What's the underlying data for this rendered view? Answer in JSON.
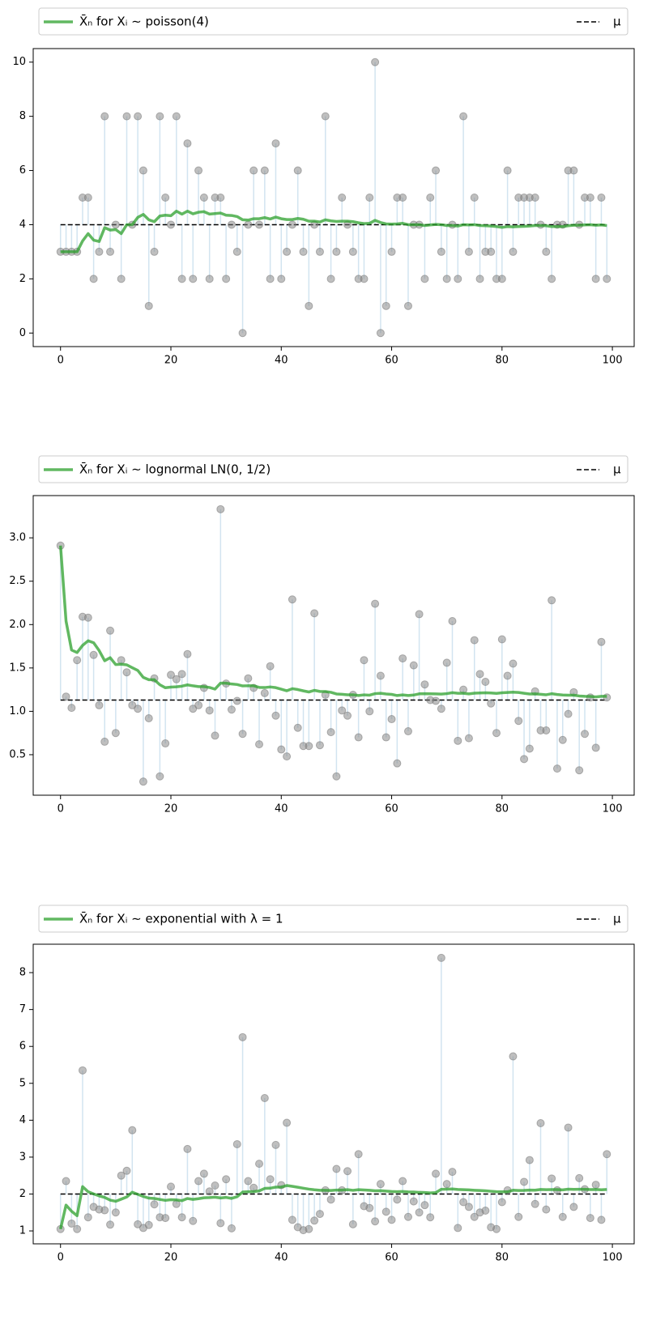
{
  "chart_data": [
    {
      "type": "line",
      "legend": "top",
      "mean": {
        "name": "X̄ₙ for Xᵢ ∼ poisson(4)",
        "color": "#2ca02c",
        "values": [
          3,
          3,
          3,
          3,
          3.4,
          3.67,
          3.43,
          3.38,
          3.89,
          3.8,
          3.82,
          3.67,
          4.0,
          4.0,
          4.27,
          4.38,
          4.18,
          4.11,
          4.32,
          4.35,
          4.33,
          4.5,
          4.39,
          4.5,
          4.4,
          4.46,
          4.48,
          4.39,
          4.41,
          4.43,
          4.35,
          4.34,
          4.3,
          4.18,
          4.17,
          4.22,
          4.22,
          4.26,
          4.21,
          4.28,
          4.22,
          4.19,
          4.19,
          4.23,
          4.2,
          4.13,
          4.13,
          4.1,
          4.18,
          4.14,
          4.12,
          4.13,
          4.13,
          4.11,
          4.07,
          4.04,
          4.05,
          4.16,
          4.08,
          4.03,
          4.02,
          4.03,
          4.05,
          4.0,
          4.0,
          4.0,
          3.97,
          3.99,
          4.01,
          4.0,
          3.97,
          3.97,
          3.95,
          4.0,
          3.99,
          4.0,
          3.97,
          3.96,
          3.95,
          3.93,
          3.9,
          3.93,
          3.92,
          3.93,
          3.94,
          3.95,
          3.97,
          3.97,
          3.96,
          3.93,
          3.93,
          3.93,
          3.96,
          3.98,
          3.98,
          3.99,
          4.0,
          3.98,
          3.99,
          3.97
        ]
      },
      "reference": {
        "name": "μ",
        "color": "#000000",
        "value": 4
      },
      "samples": {
        "color": "#808080",
        "stem_color": "#1f77b4",
        "values": [
          3,
          3,
          3,
          3,
          5,
          5,
          2,
          3,
          8,
          3,
          4,
          2,
          8,
          4,
          8,
          6,
          1,
          3,
          8,
          5,
          4,
          8,
          2,
          7,
          2,
          6,
          5,
          2,
          5,
          5,
          2,
          4,
          3,
          0,
          4,
          6,
          4,
          6,
          2,
          7,
          2,
          3,
          4,
          6,
          3,
          1,
          4,
          3,
          8,
          2,
          3,
          5,
          4,
          3,
          2,
          2,
          5,
          10,
          0,
          1,
          3,
          5,
          5,
          1,
          4,
          4,
          2,
          5,
          6,
          3,
          2,
          4,
          2,
          8,
          3,
          5,
          2,
          3,
          3,
          2,
          2,
          6,
          3,
          5,
          5,
          5,
          5,
          4,
          3,
          2,
          4,
          4,
          6,
          6,
          4,
          5,
          5,
          2,
          5,
          2
        ]
      },
      "x": [
        0,
        1,
        2,
        3,
        4,
        5,
        6,
        7,
        8,
        9,
        10,
        11,
        12,
        13,
        14,
        15,
        16,
        17,
        18,
        19,
        20,
        21,
        22,
        23,
        24,
        25,
        26,
        27,
        28,
        29,
        30,
        31,
        32,
        33,
        34,
        35,
        36,
        37,
        38,
        39,
        40,
        41,
        42,
        43,
        44,
        45,
        46,
        47,
        48,
        49,
        50,
        51,
        52,
        53,
        54,
        55,
        56,
        57,
        58,
        59,
        60,
        61,
        62,
        63,
        64,
        65,
        66,
        67,
        68,
        69,
        70,
        71,
        72,
        73,
        74,
        75,
        76,
        77,
        78,
        79,
        80,
        81,
        82,
        83,
        84,
        85,
        86,
        87,
        88,
        89,
        90,
        91,
        92,
        93,
        94,
        95,
        96,
        97,
        98,
        99
      ],
      "xlim": [
        -4.95,
        103.95
      ],
      "xticks": [
        0,
        20,
        40,
        60,
        80,
        100
      ],
      "ylim": [
        -0.5,
        10.5
      ],
      "yticks": [
        0,
        2,
        4,
        6,
        8,
        10
      ]
    },
    {
      "type": "line",
      "legend": "top",
      "mean": {
        "name": "X̄ₙ for Xᵢ ∼ lognormal LN(0, 1/2)",
        "color": "#2ca02c",
        "values": [
          2.91,
          2.04,
          1.707,
          1.678,
          1.76,
          1.813,
          1.79,
          1.7,
          1.583,
          1.618,
          1.539,
          1.543,
          1.536,
          1.503,
          1.471,
          1.391,
          1.364,
          1.364,
          1.306,
          1.272,
          1.279,
          1.283,
          1.29,
          1.305,
          1.294,
          1.285,
          1.285,
          1.275,
          1.256,
          1.325,
          1.325,
          1.315,
          1.309,
          1.293,
          1.295,
          1.294,
          1.276,
          1.274,
          1.281,
          1.273,
          1.255,
          1.237,
          1.261,
          1.251,
          1.236,
          1.223,
          1.242,
          1.229,
          1.228,
          1.219,
          1.2,
          1.196,
          1.191,
          1.191,
          1.182,
          1.19,
          1.186,
          1.204,
          1.208,
          1.2,
          1.195,
          1.182,
          1.189,
          1.182,
          1.188,
          1.202,
          1.203,
          1.202,
          1.201,
          1.199,
          1.204,
          1.215,
          1.208,
          1.208,
          1.201,
          1.209,
          1.212,
          1.214,
          1.212,
          1.207,
          1.214,
          1.217,
          1.221,
          1.217,
          1.208,
          1.2,
          1.201,
          1.196,
          1.191,
          1.203,
          1.194,
          1.188,
          1.186,
          1.186,
          1.177,
          1.173,
          1.172,
          1.166,
          1.173,
          1.173
        ]
      },
      "reference": {
        "name": "μ",
        "color": "#000000",
        "value": 1.13
      },
      "samples": {
        "color": "#808080",
        "stem_color": "#1f77b4",
        "values": [
          2.91,
          1.17,
          1.04,
          1.59,
          2.09,
          2.08,
          1.65,
          1.07,
          0.65,
          1.93,
          0.75,
          1.59,
          1.45,
          1.07,
          1.03,
          0.19,
          0.92,
          1.38,
          0.25,
          0.63,
          1.42,
          1.37,
          1.43,
          1.66,
          1.03,
          1.07,
          1.27,
          1.01,
          0.72,
          3.33,
          1.32,
          1.02,
          1.12,
          0.74,
          1.38,
          1.27,
          0.62,
          1.21,
          1.52,
          0.95,
          0.56,
          0.48,
          2.29,
          0.81,
          0.6,
          0.6,
          2.13,
          0.61,
          1.19,
          0.76,
          0.25,
          1.01,
          0.95,
          1.19,
          0.7,
          1.59,
          1.0,
          2.24,
          1.41,
          0.7,
          0.91,
          0.4,
          1.61,
          0.77,
          1.53,
          2.12,
          1.31,
          1.13,
          1.12,
          1.03,
          1.56,
          2.04,
          0.66,
          1.25,
          0.69,
          1.82,
          1.43,
          1.34,
          1.09,
          0.75,
          1.83,
          1.41,
          1.55,
          0.89,
          0.45,
          0.57,
          1.23,
          0.78,
          0.78,
          2.28,
          0.34,
          0.67,
          0.97,
          1.22,
          0.32,
          0.74,
          1.16,
          0.58,
          1.8,
          1.16
        ]
      },
      "x": [
        0,
        1,
        2,
        3,
        4,
        5,
        6,
        7,
        8,
        9,
        10,
        11,
        12,
        13,
        14,
        15,
        16,
        17,
        18,
        19,
        20,
        21,
        22,
        23,
        24,
        25,
        26,
        27,
        28,
        29,
        30,
        31,
        32,
        33,
        34,
        35,
        36,
        37,
        38,
        39,
        40,
        41,
        42,
        43,
        44,
        45,
        46,
        47,
        48,
        49,
        50,
        51,
        52,
        53,
        54,
        55,
        56,
        57,
        58,
        59,
        60,
        61,
        62,
        63,
        64,
        65,
        66,
        67,
        68,
        69,
        70,
        71,
        72,
        73,
        74,
        75,
        76,
        77,
        78,
        79,
        80,
        81,
        82,
        83,
        84,
        85,
        86,
        87,
        88,
        89,
        90,
        91,
        92,
        93,
        94,
        95,
        96,
        97,
        98,
        99
      ],
      "xlim": [
        -4.95,
        103.95
      ],
      "xticks": [
        0,
        20,
        40,
        60,
        80,
        100
      ],
      "ylim": [
        0.033,
        3.487
      ],
      "yticks": [
        0.5,
        {
          "value": 1,
          "label": "1.0"
        },
        1.5,
        {
          "value": 2,
          "label": "2.0"
        },
        2.5,
        {
          "value": 3,
          "label": "3.0"
        }
      ]
    },
    {
      "type": "line",
      "legend": "top",
      "mean": {
        "name": "X̄ₙ for Xᵢ ∼ exponential with λ = 1",
        "color": "#2ca02c",
        "values": [
          1.05,
          1.7,
          1.533,
          1.413,
          2.2,
          2.062,
          2.003,
          1.95,
          1.907,
          1.833,
          1.803,
          1.861,
          1.92,
          2.049,
          1.991,
          1.934,
          1.889,
          1.879,
          1.853,
          1.828,
          1.845,
          1.84,
          1.82,
          1.878,
          1.854,
          1.873,
          1.898,
          1.904,
          1.915,
          1.892,
          1.908,
          1.882,
          1.926,
          2.054,
          2.062,
          2.065,
          2.085,
          2.152,
          2.158,
          2.187,
          2.188,
          2.23,
          2.208,
          2.183,
          2.157,
          2.133,
          2.115,
          2.101,
          2.101,
          2.096,
          2.108,
          2.108,
          2.117,
          2.1,
          2.118,
          2.11,
          2.101,
          2.087,
          2.09,
          2.08,
          2.068,
          2.064,
          2.069,
          2.058,
          2.054,
          2.045,
          2.04,
          2.03,
          2.038,
          2.129,
          2.131,
          2.137,
          2.123,
          2.118,
          2.112,
          2.102,
          2.095,
          2.088,
          2.075,
          2.062,
          2.059,
          2.059,
          2.103,
          2.095,
          2.098,
          2.107,
          2.103,
          2.124,
          2.117,
          2.121,
          2.121,
          2.113,
          2.131,
          2.126,
          2.129,
          2.129,
          2.121,
          2.122,
          2.114,
          2.123
        ]
      },
      "reference": {
        "name": "μ",
        "color": "#000000",
        "value": 2
      },
      "samples": {
        "color": "#808080",
        "stem_color": "#1f77b4",
        "values": [
          1.05,
          2.35,
          1.2,
          1.05,
          5.35,
          1.37,
          1.65,
          1.58,
          1.56,
          1.17,
          1.5,
          2.5,
          2.63,
          3.73,
          1.18,
          1.08,
          1.16,
          1.72,
          1.37,
          1.35,
          2.2,
          1.73,
          1.37,
          3.22,
          1.27,
          2.35,
          2.55,
          2.07,
          2.23,
          1.21,
          2.4,
          1.07,
          3.35,
          6.25,
          2.35,
          2.17,
          2.82,
          4.6,
          2.4,
          3.33,
          2.24,
          3.93,
          1.3,
          1.1,
          1.02,
          1.05,
          1.28,
          1.46,
          2.1,
          1.85,
          2.68,
          2.1,
          2.62,
          1.18,
          3.08,
          1.67,
          1.62,
          1.26,
          2.27,
          1.52,
          1.3,
          1.85,
          2.35,
          1.38,
          1.8,
          1.5,
          1.7,
          1.37,
          2.55,
          8.4,
          2.27,
          2.6,
          1.08,
          1.78,
          1.65,
          1.38,
          1.5,
          1.55,
          1.1,
          1.05,
          1.78,
          2.1,
          5.73,
          1.38,
          2.33,
          2.92,
          1.73,
          3.92,
          1.58,
          2.42,
          2.1,
          1.38,
          3.8,
          1.65,
          2.43,
          2.13,
          1.35,
          2.25,
          1.3,
          3.08
        ]
      },
      "x": [
        0,
        1,
        2,
        3,
        4,
        5,
        6,
        7,
        8,
        9,
        10,
        11,
        12,
        13,
        14,
        15,
        16,
        17,
        18,
        19,
        20,
        21,
        22,
        23,
        24,
        25,
        26,
        27,
        28,
        29,
        30,
        31,
        32,
        33,
        34,
        35,
        36,
        37,
        38,
        39,
        40,
        41,
        42,
        43,
        44,
        45,
        46,
        47,
        48,
        49,
        50,
        51,
        52,
        53,
        54,
        55,
        56,
        57,
        58,
        59,
        60,
        61,
        62,
        63,
        64,
        65,
        66,
        67,
        68,
        69,
        70,
        71,
        72,
        73,
        74,
        75,
        76,
        77,
        78,
        79,
        80,
        81,
        82,
        83,
        84,
        85,
        86,
        87,
        88,
        89,
        90,
        91,
        92,
        93,
        94,
        95,
        96,
        97,
        98,
        99
      ],
      "xlim": [
        -4.95,
        103.95
      ],
      "xticks": [
        0,
        20,
        40,
        60,
        80,
        100
      ],
      "ylim": [
        0.65,
        8.77
      ],
      "yticks": [
        1,
        2,
        3,
        4,
        5,
        6,
        7,
        8
      ]
    }
  ]
}
